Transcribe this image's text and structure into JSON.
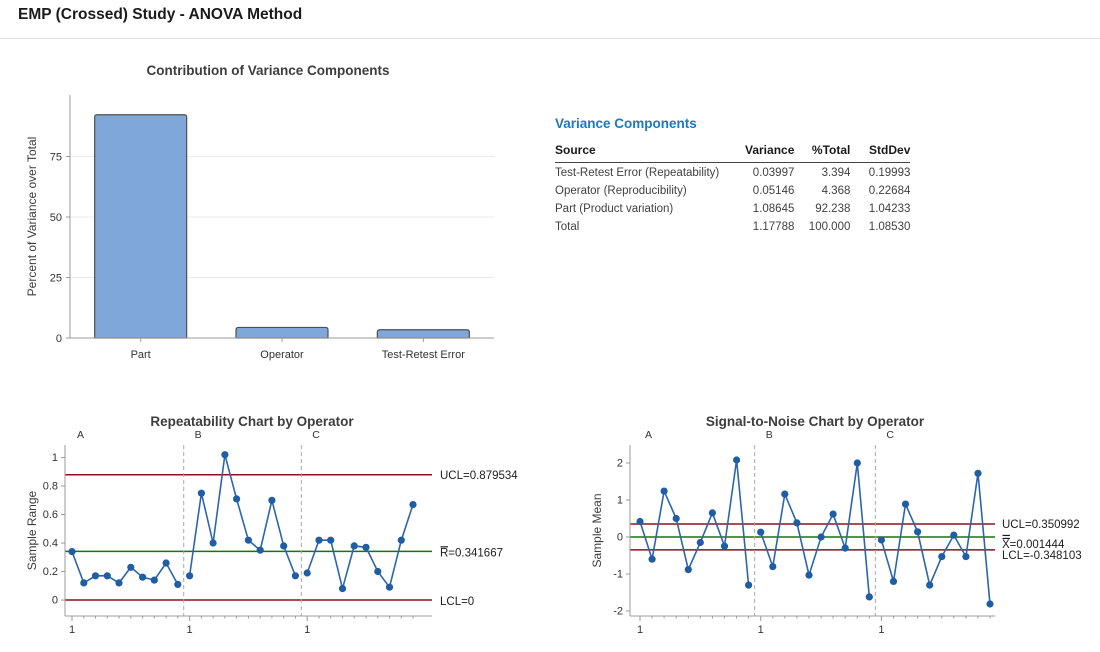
{
  "page": {
    "title": "EMP (Crossed) Study - ANOVA Method"
  },
  "colors": {
    "heading_blue": "#1b79c0",
    "bar_fill": "#7fa8d9",
    "bar_stroke": "#4f4f4f",
    "series_blue": "#2b66ad",
    "point_blue": "#1f5da5",
    "limit_red": "#8c1218",
    "center_green": "#0c7a0c",
    "axis_gray": "#9b9b9b",
    "grid_gray": "#ebebeb",
    "separator_gray": "#a8a8a8",
    "text_dark": "#1d1d1d",
    "text_medium": "#3d3d3d"
  },
  "variance_components": {
    "heading": "Variance Components",
    "columns": [
      "Source",
      "Variance",
      "%Total",
      "StdDev"
    ],
    "rows": [
      {
        "source": "Test-Retest Error (Repeatability)",
        "variance": "0.03997",
        "pct_total": "3.394",
        "stddev": "0.19993"
      },
      {
        "source": "Operator (Reproducibility)",
        "variance": "0.05146",
        "pct_total": "4.368",
        "stddev": "0.22684"
      },
      {
        "source": "Part (Product variation)",
        "variance": "1.08645",
        "pct_total": "92.238",
        "stddev": "1.04233"
      },
      {
        "source": "Total",
        "variance": "1.17788",
        "pct_total": "100.000",
        "stddev": "1.08530"
      }
    ]
  },
  "chart_data": [
    {
      "id": "contribution-bar-chart",
      "type": "bar",
      "title": "Contribution of Variance Components",
      "xlabel": "",
      "ylabel": "Percent of Variance over Total",
      "categories": [
        "Part",
        "Operator",
        "Test-Retest Error"
      ],
      "values": [
        92.238,
        4.368,
        3.394
      ],
      "yticks": [
        0,
        25,
        50,
        75
      ],
      "ylim": [
        0,
        100.4
      ],
      "grid": true,
      "legend": "none"
    },
    {
      "id": "repeatability-chart",
      "type": "line",
      "title": "Repeatability Chart by Operator",
      "xlabel": "",
      "ylabel": "Sample Range",
      "groups": [
        "A",
        "B",
        "C"
      ],
      "series": [
        {
          "name": "A",
          "values": [
            0.34,
            0.12,
            0.17,
            0.17,
            0.12,
            0.23,
            0.16,
            0.14,
            0.26,
            0.11
          ]
        },
        {
          "name": "B",
          "values": [
            0.17,
            0.75,
            0.4,
            1.02,
            0.71,
            0.42,
            0.35,
            0.7,
            0.38,
            0.17
          ]
        },
        {
          "name": "C",
          "values": [
            0.19,
            0.42,
            0.42,
            0.08,
            0.38,
            0.37,
            0.2,
            0.09,
            0.42,
            0.67
          ]
        }
      ],
      "yticks": [
        0,
        0.2,
        0.4,
        0.6,
        0.8,
        1
      ],
      "ylim": [
        -0.112,
        1.088
      ],
      "grid": false,
      "x_group_tick_label": "1",
      "control_lines": [
        {
          "label": "UCL=0.879534",
          "value": 0.879534,
          "type": "ucl"
        },
        {
          "label": "R=0.341667",
          "value": 0.341667,
          "type": "center",
          "decoration": "overbar"
        },
        {
          "label": "LCL=0",
          "value": 0,
          "type": "lcl"
        }
      ]
    },
    {
      "id": "signal-to-noise-chart",
      "type": "line",
      "title": "Signal-to-Noise Chart by Operator",
      "xlabel": "",
      "ylabel": "Sample Mean",
      "groups": [
        "A",
        "B",
        "C"
      ],
      "series": [
        {
          "name": "A",
          "values": [
            0.42,
            -0.6,
            1.24,
            0.5,
            -0.88,
            -0.15,
            0.65,
            -0.25,
            2.08,
            -1.3
          ]
        },
        {
          "name": "B",
          "values": [
            0.13,
            -0.8,
            1.16,
            0.38,
            -1.03,
            0.0,
            0.62,
            -0.3,
            2.0,
            -1.62
          ]
        },
        {
          "name": "C",
          "values": [
            -0.08,
            -1.2,
            0.89,
            0.14,
            -1.3,
            -0.53,
            0.05,
            -0.53,
            1.72,
            -1.81
          ]
        }
      ],
      "yticks": [
        -2,
        -1,
        0,
        1,
        2
      ],
      "ylim": [
        -2.135,
        2.486
      ],
      "grid": false,
      "x_group_tick_label": "1",
      "control_lines": [
        {
          "label": "UCL=0.350992",
          "value": 0.350992,
          "type": "ucl"
        },
        {
          "label": "X=0.001444",
          "value": 0.001444,
          "type": "center",
          "decoration": "double-overbar"
        },
        {
          "label": "LCL=-0.348103",
          "value": -0.348103,
          "type": "lcl"
        }
      ]
    }
  ]
}
